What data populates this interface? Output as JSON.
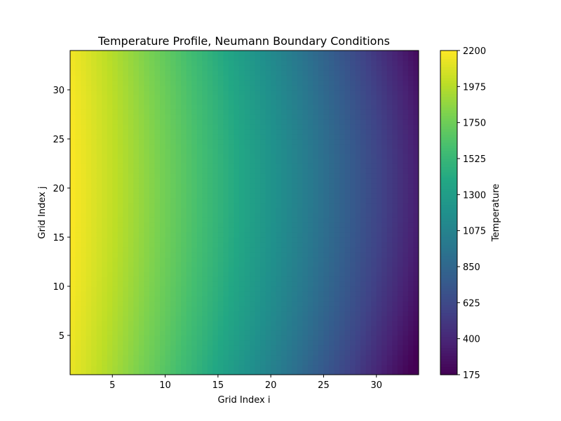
{
  "chart_data": {
    "type": "heatmap",
    "title": "Temperature Profile, Neumann Boundary Conditions",
    "xlabel": "Grid Index i",
    "ylabel": "Grid Index j",
    "xlim": [
      1,
      34
    ],
    "ylim": [
      1,
      34
    ],
    "x_ticks": [
      5,
      10,
      15,
      20,
      25,
      30
    ],
    "y_ticks": [
      5,
      10,
      15,
      20,
      25,
      30
    ],
    "colormap": "viridis",
    "colorbar": {
      "label": "Temperature",
      "range": [
        175,
        2200
      ],
      "ticks": [
        175,
        400,
        625,
        850,
        1075,
        1300,
        1525,
        1750,
        1975,
        2200
      ]
    },
    "sample_values": [
      {
        "i": 1,
        "j": 20,
        "temperature": 2200
      },
      {
        "i": 1,
        "j": 1,
        "temperature": 2000
      },
      {
        "i": 12,
        "j": 20,
        "temperature": 1450
      },
      {
        "i": 20,
        "j": 20,
        "temperature": 1100
      },
      {
        "i": 28,
        "j": 20,
        "temperature": 700
      },
      {
        "i": 34,
        "j": 20,
        "temperature": 450
      },
      {
        "i": 34,
        "j": 1,
        "temperature": 175
      }
    ]
  }
}
